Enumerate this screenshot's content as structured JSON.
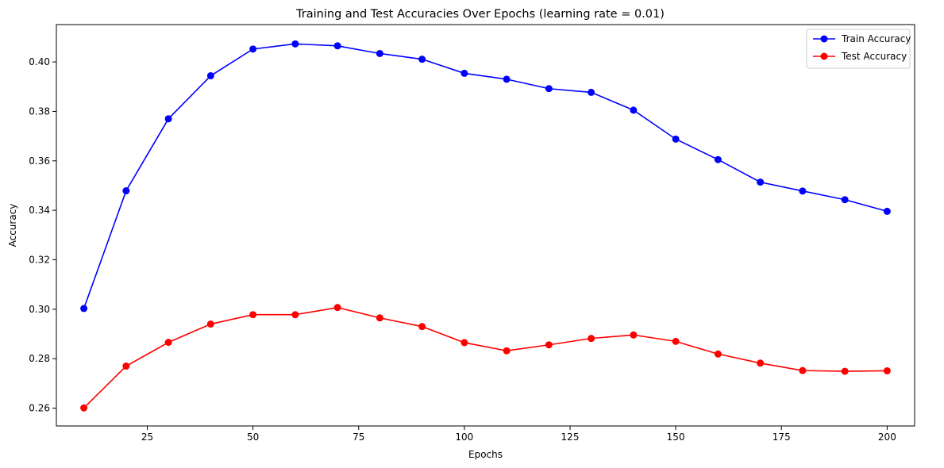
{
  "chart_data": {
    "type": "line",
    "title": "Training and Test Accuracies Over Epochs (learning rate = 0.01)",
    "xlabel": "Epochs",
    "ylabel": "Accuracy",
    "xlim": [
      3.5,
      206.5
    ],
    "ylim": [
      0.2528,
      0.4151
    ],
    "xticks": [
      25,
      50,
      75,
      100,
      125,
      150,
      175,
      200
    ],
    "yticks": [
      0.26,
      0.28,
      0.3,
      0.32,
      0.34,
      0.36,
      0.38,
      0.4
    ],
    "ytick_labels": [
      "0.26",
      "0.28",
      "0.30",
      "0.32",
      "0.34",
      "0.36",
      "0.38",
      "0.40"
    ],
    "grid": false,
    "legend_position": "top-right",
    "x": [
      10,
      20,
      30,
      40,
      50,
      60,
      70,
      80,
      90,
      100,
      110,
      120,
      130,
      140,
      150,
      160,
      170,
      180,
      190,
      200
    ],
    "series": [
      {
        "name": "Train Accuracy",
        "color": "#0000ff",
        "marker": "circle",
        "values": [
          0.3003,
          0.3479,
          0.377,
          0.3944,
          0.4052,
          0.4073,
          0.4065,
          0.4034,
          0.4011,
          0.3954,
          0.393,
          0.3892,
          0.3877,
          0.3805,
          0.3688,
          0.3605,
          0.3514,
          0.3478,
          0.3443,
          0.3396
        ]
      },
      {
        "name": "Test Accuracy",
        "color": "#ff0000",
        "marker": "circle",
        "values": [
          0.2601,
          0.277,
          0.2866,
          0.294,
          0.2978,
          0.2978,
          0.3007,
          0.2965,
          0.293,
          0.2865,
          0.2832,
          0.2856,
          0.2882,
          0.2896,
          0.287,
          0.2819,
          0.2782,
          0.2752,
          0.2749,
          0.2751
        ]
      }
    ]
  }
}
